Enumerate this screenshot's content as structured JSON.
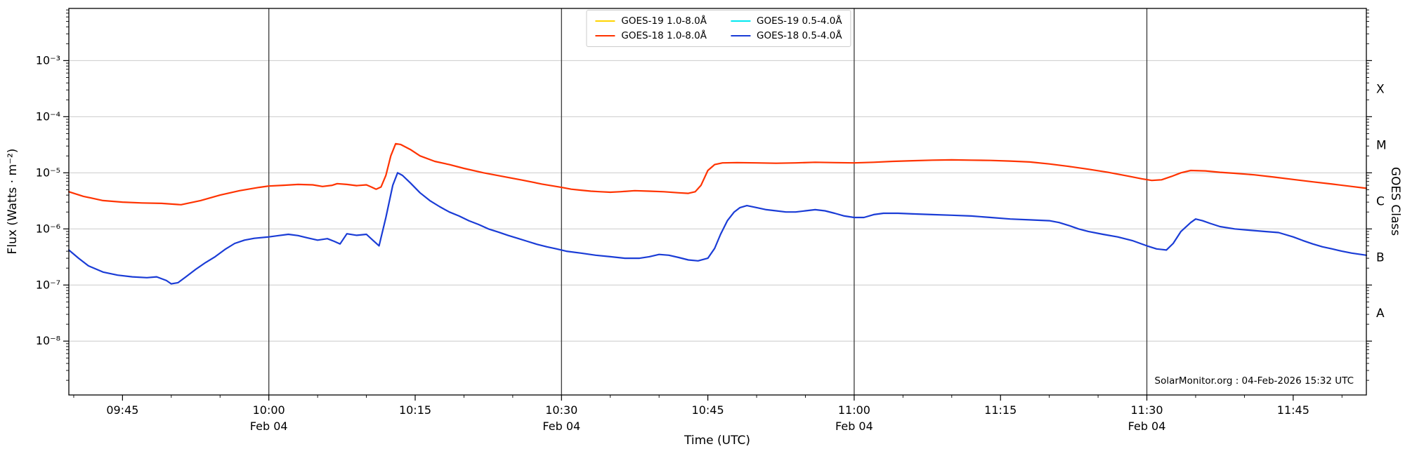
{
  "chart_data": {
    "type": "line",
    "title": "",
    "xlabel": "Time (UTC)",
    "ylabel": "Flux (Watts · m⁻²)",
    "ylabel_right": "GOES Class",
    "y_scale": "log",
    "y_domain_log10": [
      -8.96,
      -2.07
    ],
    "y_ticks": [
      {
        "exp": -3,
        "label": "10⁻³"
      },
      {
        "exp": -4,
        "label": "10⁻⁴"
      },
      {
        "exp": -5,
        "label": "10⁻⁵"
      },
      {
        "exp": -6,
        "label": "10⁻⁶"
      },
      {
        "exp": -7,
        "label": "10⁻⁷"
      },
      {
        "exp": -8,
        "label": "10⁻⁸"
      }
    ],
    "goes_class_bands": [
      {
        "label": "X",
        "log_center": -3.5
      },
      {
        "label": "M",
        "log_center": -4.5
      },
      {
        "label": "C",
        "log_center": -5.5
      },
      {
        "label": "B",
        "log_center": -6.5
      },
      {
        "label": "A",
        "log_center": -7.5
      }
    ],
    "x_domain_minutes_since_0900": [
      39.5,
      172.5
    ],
    "x_ticks": [
      {
        "t": 45,
        "label": "09:45"
      },
      {
        "t": 60,
        "label": "10:00",
        "sub": "Feb 04"
      },
      {
        "t": 75,
        "label": "10:15"
      },
      {
        "t": 90,
        "label": "10:30",
        "sub": "Feb 04"
      },
      {
        "t": 105,
        "label": "10:45"
      },
      {
        "t": 120,
        "label": "11:00",
        "sub": "Feb 04"
      },
      {
        "t": 135,
        "label": "11:15"
      },
      {
        "t": 150,
        "label": "11:30",
        "sub": "Feb 04"
      },
      {
        "t": 165,
        "label": "11:45"
      }
    ],
    "x_minor_step_minutes": 5,
    "day_line_times": [
      60,
      90,
      120,
      150
    ],
    "annotation": "SolarMonitor.org : 04-Feb-2026 15:32 UTC",
    "legend": {
      "entries": [
        {
          "id": "goes-19-long",
          "label": "GOES-19 1.0-8.0Å",
          "color": "#ffd400"
        },
        {
          "id": "goes-18-long",
          "label": "GOES-18 1.0-8.0Å",
          "color": "#ff3300"
        },
        {
          "id": "goes-19-short",
          "label": "GOES-19 0.5-4.0Å",
          "color": "#00e8f0"
        },
        {
          "id": "goes-18-short",
          "label": "GOES-18 0.5-4.0Å",
          "color": "#1a3cd6"
        }
      ]
    },
    "series": [
      {
        "id": "goes-19-long",
        "name": "GOES-19 1.0-8.0Å",
        "color": "#ffd400",
        "points": []
      },
      {
        "id": "goes-18-long",
        "name": "GOES-18 1.0-8.0Å",
        "color": "#ff3300",
        "points": [
          [
            39.5,
            4.6e-06
          ],
          [
            41,
            3.8e-06
          ],
          [
            43,
            3.2e-06
          ],
          [
            45,
            3e-06
          ],
          [
            47,
            2.9e-06
          ],
          [
            49,
            2.85e-06
          ],
          [
            51,
            2.7e-06
          ],
          [
            53,
            3.2e-06
          ],
          [
            55,
            4e-06
          ],
          [
            57,
            4.8e-06
          ],
          [
            59,
            5.5e-06
          ],
          [
            60,
            5.8e-06
          ],
          [
            61.5,
            6e-06
          ],
          [
            63,
            6.2e-06
          ],
          [
            64.5,
            6.1e-06
          ],
          [
            65.5,
            5.7e-06
          ],
          [
            66.5,
            6e-06
          ],
          [
            67,
            6.4e-06
          ],
          [
            68,
            6.2e-06
          ],
          [
            69,
            5.9e-06
          ],
          [
            70,
            6.1e-06
          ],
          [
            70.5,
            5.6e-06
          ],
          [
            71,
            5.1e-06
          ],
          [
            71.5,
            5.6e-06
          ],
          [
            72,
            9e-06
          ],
          [
            72.5,
            2e-05
          ],
          [
            73,
            3.3e-05
          ],
          [
            73.5,
            3.2e-05
          ],
          [
            74.5,
            2.6e-05
          ],
          [
            75.5,
            2e-05
          ],
          [
            77,
            1.6e-05
          ],
          [
            78.5,
            1.4e-05
          ],
          [
            80,
            1.2e-05
          ],
          [
            82,
            1e-05
          ],
          [
            84,
            8.6e-06
          ],
          [
            86,
            7.4e-06
          ],
          [
            88,
            6.3e-06
          ],
          [
            90,
            5.5e-06
          ],
          [
            91,
            5.1e-06
          ],
          [
            92,
            4.9e-06
          ],
          [
            93,
            4.7e-06
          ],
          [
            94,
            4.6e-06
          ],
          [
            95,
            4.5e-06
          ],
          [
            96,
            4.6e-06
          ],
          [
            97.5,
            4.8e-06
          ],
          [
            99,
            4.7e-06
          ],
          [
            100.5,
            4.6e-06
          ],
          [
            102,
            4.4e-06
          ],
          [
            103,
            4.3e-06
          ],
          [
            103.7,
            4.6e-06
          ],
          [
            104.3,
            6e-06
          ],
          [
            105,
            1.1e-05
          ],
          [
            105.7,
            1.4e-05
          ],
          [
            106.5,
            1.5e-05
          ],
          [
            108,
            1.52e-05
          ],
          [
            110,
            1.5e-05
          ],
          [
            112,
            1.48e-05
          ],
          [
            114,
            1.5e-05
          ],
          [
            116,
            1.54e-05
          ],
          [
            118,
            1.52e-05
          ],
          [
            120,
            1.5e-05
          ],
          [
            122,
            1.54e-05
          ],
          [
            124,
            1.6e-05
          ],
          [
            126,
            1.64e-05
          ],
          [
            128,
            1.68e-05
          ],
          [
            130,
            1.7e-05
          ],
          [
            132,
            1.68e-05
          ],
          [
            134,
            1.66e-05
          ],
          [
            136,
            1.62e-05
          ],
          [
            138,
            1.56e-05
          ],
          [
            140,
            1.44e-05
          ],
          [
            142,
            1.3e-05
          ],
          [
            144,
            1.16e-05
          ],
          [
            146,
            1.02e-05
          ],
          [
            148,
            8.8e-06
          ],
          [
            149.5,
            7.8e-06
          ],
          [
            150.5,
            7.3e-06
          ],
          [
            151.5,
            7.5e-06
          ],
          [
            152.5,
            8.6e-06
          ],
          [
            153.5,
            1e-05
          ],
          [
            154.5,
            1.1e-05
          ],
          [
            156,
            1.08e-05
          ],
          [
            157.5,
            1.02e-05
          ],
          [
            159,
            9.8e-06
          ],
          [
            161,
            9.2e-06
          ],
          [
            163,
            8.4e-06
          ],
          [
            165,
            7.6e-06
          ],
          [
            167,
            6.9e-06
          ],
          [
            169,
            6.3e-06
          ],
          [
            171,
            5.7e-06
          ],
          [
            172.5,
            5.3e-06
          ]
        ]
      },
      {
        "id": "goes-19-short",
        "name": "GOES-19 0.5-4.0Å",
        "color": "#00e8f0",
        "points": []
      },
      {
        "id": "goes-18-short",
        "name": "GOES-18 0.5-4.0Å",
        "color": "#1a3cd6",
        "points": [
          [
            39.5,
            4.2e-07
          ],
          [
            40.5,
            3e-07
          ],
          [
            41.5,
            2.2e-07
          ],
          [
            43,
            1.7e-07
          ],
          [
            44.5,
            1.5e-07
          ],
          [
            46,
            1.4e-07
          ],
          [
            47.5,
            1.35e-07
          ],
          [
            48.5,
            1.4e-07
          ],
          [
            49.5,
            1.2e-07
          ],
          [
            50,
            1.05e-07
          ],
          [
            50.7,
            1.1e-07
          ],
          [
            51.5,
            1.4e-07
          ],
          [
            52.5,
            1.9e-07
          ],
          [
            53.5,
            2.5e-07
          ],
          [
            54.5,
            3.2e-07
          ],
          [
            55.5,
            4.3e-07
          ],
          [
            56.5,
            5.5e-07
          ],
          [
            57.5,
            6.3e-07
          ],
          [
            58.5,
            6.8e-07
          ],
          [
            60,
            7.2e-07
          ],
          [
            61,
            7.6e-07
          ],
          [
            62,
            8e-07
          ],
          [
            63,
            7.6e-07
          ],
          [
            64,
            6.9e-07
          ],
          [
            65,
            6.3e-07
          ],
          [
            66,
            6.7e-07
          ],
          [
            66.7,
            6e-07
          ],
          [
            67.3,
            5.4e-07
          ],
          [
            68,
            8.2e-07
          ],
          [
            69,
            7.7e-07
          ],
          [
            70,
            8e-07
          ],
          [
            70.7,
            6.2e-07
          ],
          [
            71.3,
            5e-07
          ],
          [
            72,
            1.6e-06
          ],
          [
            72.7,
            6e-06
          ],
          [
            73.2,
            1e-05
          ],
          [
            73.7,
            9e-06
          ],
          [
            74.5,
            6.6e-06
          ],
          [
            75.5,
            4.4e-06
          ],
          [
            76.5,
            3.2e-06
          ],
          [
            77.5,
            2.5e-06
          ],
          [
            78.5,
            2e-06
          ],
          [
            79.5,
            1.7e-06
          ],
          [
            80.5,
            1.4e-06
          ],
          [
            81.5,
            1.2e-06
          ],
          [
            82.5,
            1e-06
          ],
          [
            83.5,
            8.8e-07
          ],
          [
            84.5,
            7.7e-07
          ],
          [
            85.5,
            6.8e-07
          ],
          [
            86.5,
            6e-07
          ],
          [
            87.5,
            5.3e-07
          ],
          [
            88.5,
            4.8e-07
          ],
          [
            89.5,
            4.4e-07
          ],
          [
            90.5,
            4e-07
          ],
          [
            92,
            3.7e-07
          ],
          [
            93.5,
            3.4e-07
          ],
          [
            95,
            3.2e-07
          ],
          [
            96.5,
            3e-07
          ],
          [
            98,
            3e-07
          ],
          [
            99,
            3.2e-07
          ],
          [
            100,
            3.5e-07
          ],
          [
            101,
            3.4e-07
          ],
          [
            102,
            3.1e-07
          ],
          [
            103,
            2.8e-07
          ],
          [
            104,
            2.7e-07
          ],
          [
            105,
            3e-07
          ],
          [
            105.7,
            4.5e-07
          ],
          [
            106.3,
            8e-07
          ],
          [
            107,
            1.4e-06
          ],
          [
            107.7,
            2e-06
          ],
          [
            108.3,
            2.4e-06
          ],
          [
            109,
            2.6e-06
          ],
          [
            110,
            2.4e-06
          ],
          [
            111,
            2.2e-06
          ],
          [
            112,
            2.1e-06
          ],
          [
            113,
            2e-06
          ],
          [
            114,
            2e-06
          ],
          [
            115,
            2.1e-06
          ],
          [
            116,
            2.2e-06
          ],
          [
            117,
            2.1e-06
          ],
          [
            118,
            1.9e-06
          ],
          [
            119,
            1.7e-06
          ],
          [
            120,
            1.6e-06
          ],
          [
            121,
            1.6e-06
          ],
          [
            122,
            1.8e-06
          ],
          [
            123,
            1.9e-06
          ],
          [
            124.5,
            1.9e-06
          ],
          [
            126,
            1.85e-06
          ],
          [
            128,
            1.8e-06
          ],
          [
            130,
            1.75e-06
          ],
          [
            132,
            1.7e-06
          ],
          [
            134,
            1.6e-06
          ],
          [
            136,
            1.5e-06
          ],
          [
            138,
            1.45e-06
          ],
          [
            140,
            1.4e-06
          ],
          [
            141,
            1.3e-06
          ],
          [
            142,
            1.15e-06
          ],
          [
            143,
            1e-06
          ],
          [
            144,
            9e-07
          ],
          [
            145.5,
            8e-07
          ],
          [
            147,
            7.2e-07
          ],
          [
            148.5,
            6.2e-07
          ],
          [
            150,
            5e-07
          ],
          [
            151,
            4.4e-07
          ],
          [
            152,
            4.2e-07
          ],
          [
            152.7,
            5.5e-07
          ],
          [
            153.5,
            9e-07
          ],
          [
            154.5,
            1.3e-06
          ],
          [
            155,
            1.5e-06
          ],
          [
            155.7,
            1.4e-06
          ],
          [
            156.5,
            1.25e-06
          ],
          [
            157.5,
            1.1e-06
          ],
          [
            159,
            1e-06
          ],
          [
            160.5,
            9.5e-07
          ],
          [
            162,
            9e-07
          ],
          [
            163.5,
            8.6e-07
          ],
          [
            165,
            7.2e-07
          ],
          [
            166,
            6.2e-07
          ],
          [
            167,
            5.4e-07
          ],
          [
            168,
            4.8e-07
          ],
          [
            169,
            4.4e-07
          ],
          [
            170,
            4e-07
          ],
          [
            171,
            3.7e-07
          ],
          [
            172.5,
            3.4e-07
          ]
        ]
      }
    ]
  },
  "colors": {
    "grid_major": "#cccccc",
    "day_line": "#3a3a3a",
    "frame": "#000000",
    "tick": "#000000",
    "background": "#ffffff"
  }
}
